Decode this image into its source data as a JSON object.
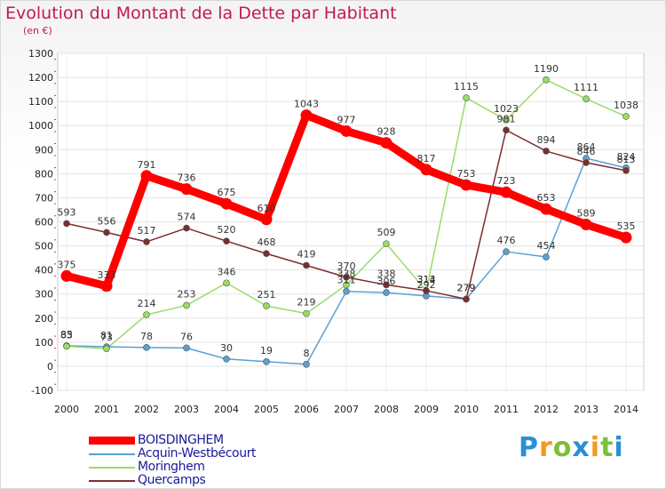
{
  "header": {
    "title": "Evolution du Montant de la Dette par Habitant",
    "unit": "(en €)"
  },
  "brand": {
    "letters": [
      "P",
      "r",
      "o",
      "x",
      "i",
      "t",
      "i"
    ],
    "colors": [
      "#2a8fd6",
      "#f29a1f",
      "#7bbf3a",
      "#2a8fd6",
      "#f29a1f",
      "#7bbf3a",
      "#2a8fd6"
    ]
  },
  "chart_data": {
    "type": "line",
    "x": [
      2000,
      2001,
      2002,
      2003,
      2004,
      2005,
      2006,
      2007,
      2008,
      2009,
      2010,
      2011,
      2012,
      2013,
      2014
    ],
    "ylim": [
      -100,
      1300
    ],
    "yticks": [
      -100,
      0,
      100,
      200,
      300,
      400,
      500,
      600,
      700,
      800,
      900,
      1000,
      1100,
      1200,
      1300
    ],
    "grid": true,
    "legend_position": "bottom-left",
    "series": [
      {
        "name": "BOISDINGHEM",
        "color": "#ff0000",
        "values": [
          375,
          333,
          791,
          736,
          675,
          610,
          1043,
          977,
          928,
          817,
          753,
          723,
          653,
          589,
          535
        ]
      },
      {
        "name": "Acquin-Westbécourt",
        "color": "#5ba0d0",
        "values": [
          85,
          81,
          78,
          76,
          30,
          19,
          8,
          311,
          306,
          292,
          279,
          476,
          454,
          864,
          824
        ]
      },
      {
        "name": "Moringhem",
        "color": "#99dd66",
        "values": [
          83,
          73,
          214,
          253,
          346,
          251,
          219,
          338,
          509,
          313,
          1115,
          1023,
          1190,
          1111,
          1038
        ]
      },
      {
        "name": "Quercamps",
        "color": "#7a2e2e",
        "values": [
          593,
          556,
          517,
          574,
          520,
          468,
          419,
          370,
          338,
          314,
          279,
          981,
          894,
          846,
          813
        ]
      }
    ]
  }
}
